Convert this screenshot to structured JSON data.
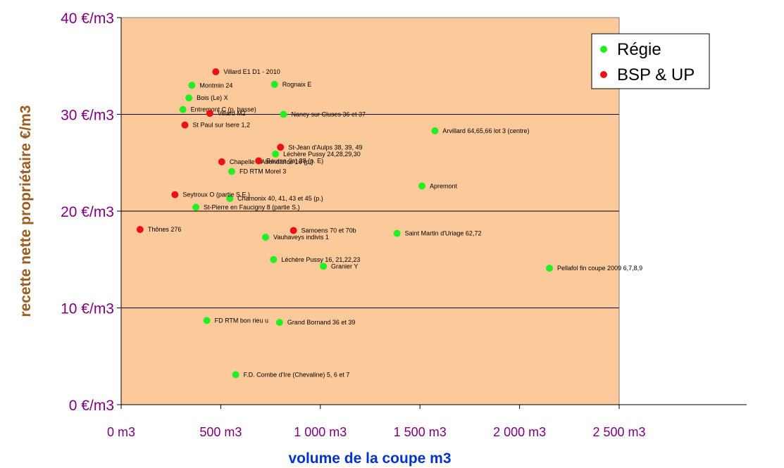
{
  "chart_data": {
    "type": "scatter",
    "title": "",
    "xlabel": "volume de la coupe m3",
    "ylabel": "recette nette propriétaire €/m3",
    "xlim": [
      0,
      2500
    ],
    "ylim": [
      0,
      40
    ],
    "x_ticks": [
      0,
      500,
      1000,
      1500,
      2000,
      2500
    ],
    "y_ticks": [
      0,
      10,
      20,
      30,
      40
    ],
    "x_tick_labels": [
      "0 m3",
      "500 m3",
      "1 000 m3",
      "1 500 m3",
      "2 000 m3",
      "2 500 m3"
    ],
    "y_tick_labels": [
      "0 €/m3",
      "10 €/m3",
      "20 €/m3",
      "30 €/m3",
      "40 €/m3"
    ],
    "grid": "horizontal",
    "legend_position": "top-right",
    "colors": {
      "plot_background": "#FBC99A",
      "tick_labels": "#800080",
      "x_title": "#0033CC",
      "y_title": "#9C5B1F",
      "grid": "#000000"
    },
    "series": [
      {
        "name": "Régie",
        "color": "#22EE22",
        "points": [
          {
            "label": "Montmin 24",
            "x": 355,
            "y": 33.0
          },
          {
            "label": "Bois (Le) X",
            "x": 340,
            "y": 31.7
          },
          {
            "label": "Entremont C (p. basse)",
            "x": 310,
            "y": 30.5
          },
          {
            "label": "Rognaix E",
            "x": 770,
            "y": 33.1
          },
          {
            "label": "Nancy sur Cluses 36 et 37",
            "x": 815,
            "y": 30.0
          },
          {
            "label": "Arvillard  64,65,66 lot 3 (centre)",
            "x": 1575,
            "y": 28.3
          },
          {
            "label": "Léchère Pussy 24,28,29,30",
            "x": 775,
            "y": 25.9
          },
          {
            "label": "FD RTM Morel 3",
            "x": 555,
            "y": 24.1
          },
          {
            "label": "Apremont",
            "x": 1510,
            "y": 22.6
          },
          {
            "label": "Chamonix 40, 41, 43 et 45 (p.)",
            "x": 545,
            "y": 21.3
          },
          {
            "label": "St-Pierre en Faucigny 8 (partie S.)",
            "x": 375,
            "y": 20.4
          },
          {
            "label": "Saint Martin d'Uriage 62,72",
            "x": 1385,
            "y": 17.7
          },
          {
            "label": "Vauhaveys indivis 1",
            "x": 725,
            "y": 17.3
          },
          {
            "label": "Léchère Pussy 16, 21,22,23",
            "x": 765,
            "y": 15.0
          },
          {
            "label": "Granier Y",
            "x": 1015,
            "y": 14.3
          },
          {
            "label": "Pellafol fin coupe 2009 6,7,8,9",
            "x": 2150,
            "y": 14.1
          },
          {
            "label": "FD RTM bon rieu u",
            "x": 430,
            "y": 8.7
          },
          {
            "label": "Grand Bornand 36 et 39",
            "x": 795,
            "y": 8.5
          },
          {
            "label": "F.D. Combe d'Ire (Chevaline) 5, 6 et 7",
            "x": 575,
            "y": 3.1
          }
        ]
      },
      {
        "name": "BSP & UP",
        "color": "#EE1111",
        "points": [
          {
            "label": "Villard E1 D1 - 2010",
            "x": 475,
            "y": 34.4
          },
          {
            "label": "Villard M2",
            "x": 445,
            "y": 30.1
          },
          {
            "label": "St Paul sur Isere 1,2",
            "x": 320,
            "y": 28.9
          },
          {
            "label": "St-Jean d'Aulps 38, 39, 49",
            "x": 800,
            "y": 26.6
          },
          {
            "label": "Chapelle d'Abondance 16 (p.)",
            "x": 505,
            "y": 25.1
          },
          {
            "label": "Baume (la) 38 (p. E)",
            "x": 690,
            "y": 25.2
          },
          {
            "label": "Seytroux  O (partie S.E.)",
            "x": 270,
            "y": 21.7
          },
          {
            "label": "Thônes 276",
            "x": 95,
            "y": 18.1
          },
          {
            "label": "Samoens 70 et 70b",
            "x": 865,
            "y": 18.0
          }
        ]
      }
    ]
  }
}
